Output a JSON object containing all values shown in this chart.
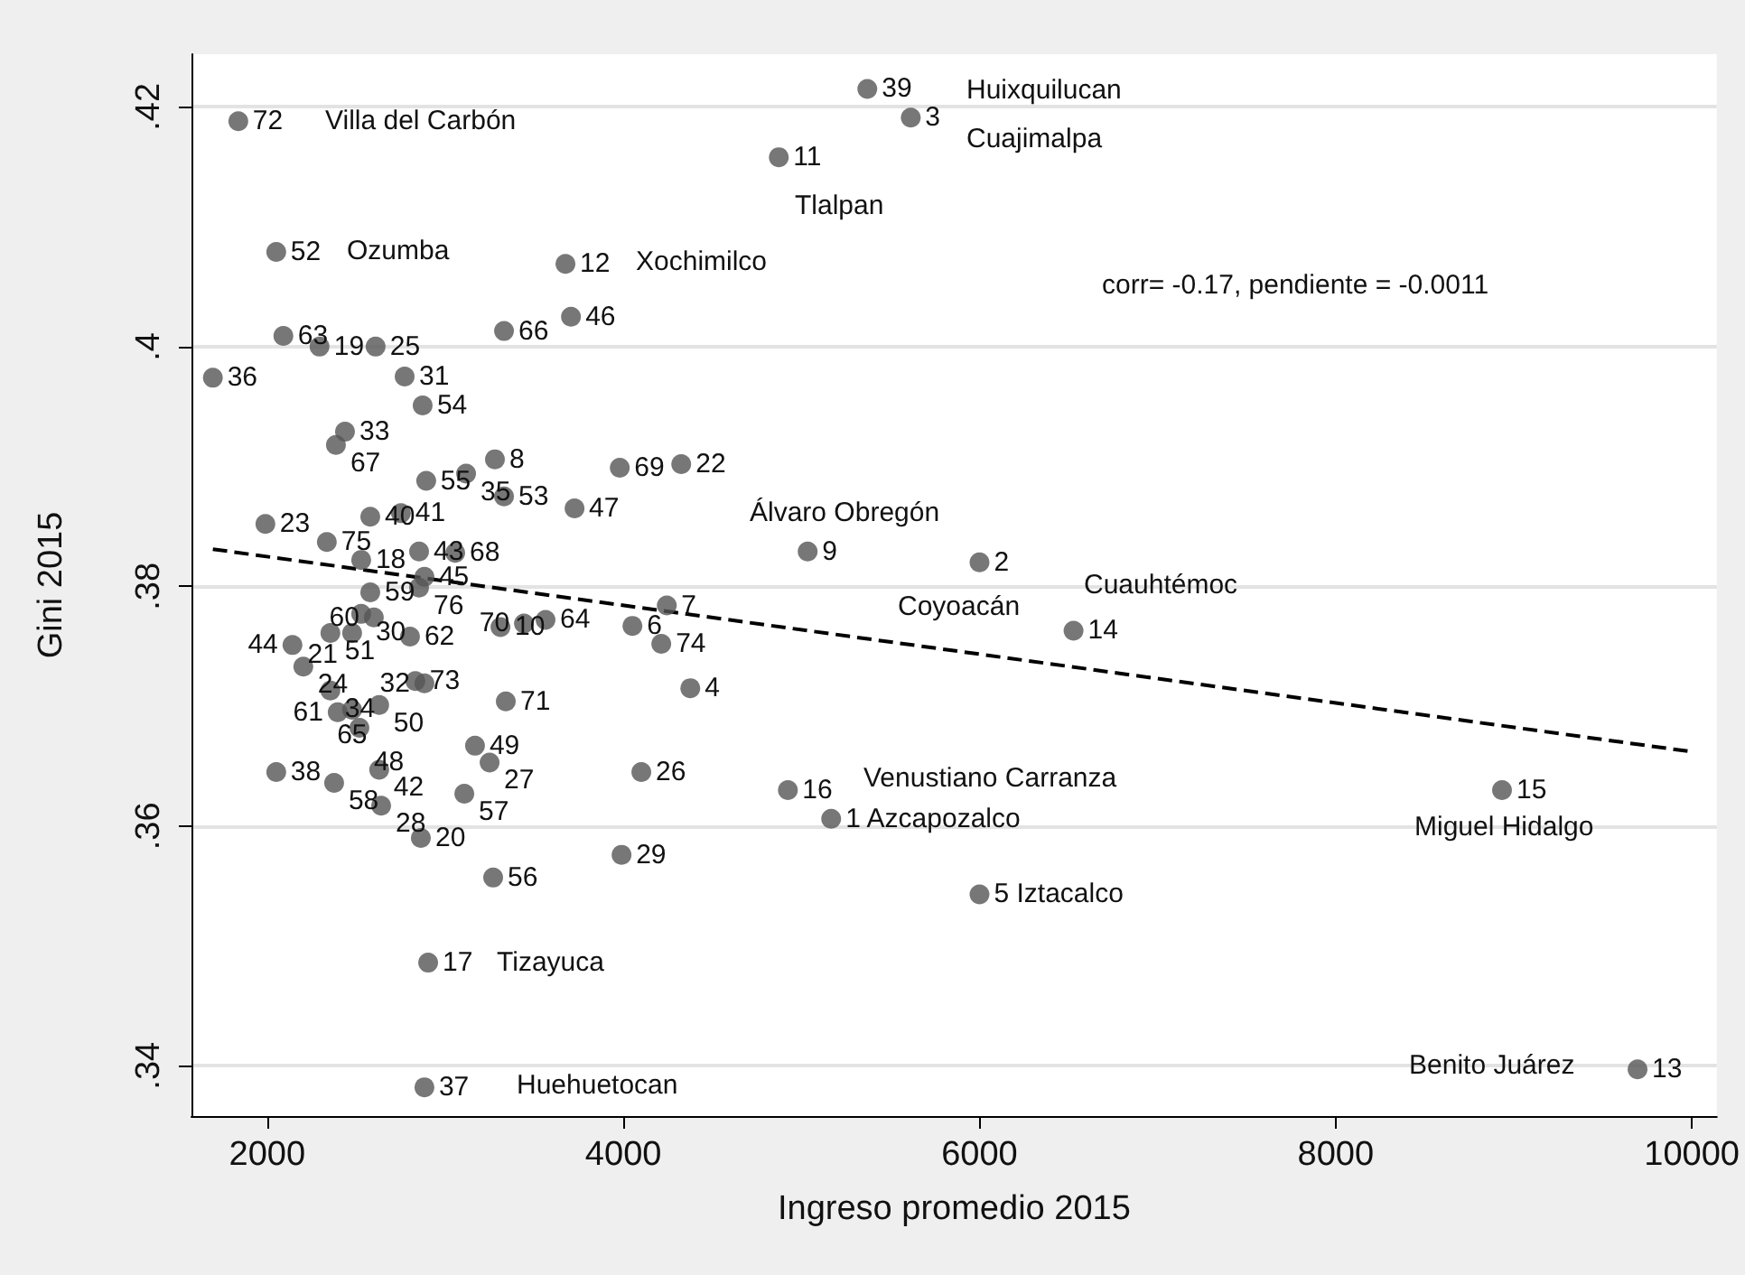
{
  "chart_data": {
    "type": "scatter",
    "xlabel": "Ingreso promedio 2015",
    "ylabel": "Gini 2015",
    "xlim": [
      1575,
      10140
    ],
    "ylim": [
      0.3358,
      0.4244
    ],
    "xticks": [
      2000,
      4000,
      6000,
      8000,
      10000
    ],
    "yticks": [
      {
        "value": 0.34,
        "label": ".34"
      },
      {
        "value": 0.36,
        "label": ".36"
      },
      {
        "value": 0.38,
        "label": ".38"
      },
      {
        "value": 0.4,
        "label": ".4"
      },
      {
        "value": 0.42,
        "label": ".42"
      }
    ],
    "grid": "y",
    "marker": "circle",
    "series": [
      {
        "color": "#555555",
        "x": [
          5370,
          5614,
          1838,
          4873,
          2051,
          3675,
          3706,
          3330,
          2091,
          2294,
          2609,
          1695,
          2772,
          2873,
          2437,
          2386,
          3279,
          3980,
          4325,
          2893,
          3117,
          3330,
          3726,
          1990,
          2579,
          2751,
          5035,
          6000,
          2335,
          2853,
          3056,
          2528,
          2883,
          2853,
          2579,
          2528,
          2599,
          2355,
          2477,
          2802,
          3310,
          3442,
          3563,
          4051,
          4244,
          4213,
          2142,
          2203,
          4376,
          2355,
          2832,
          2883,
          3340,
          2396,
          2477,
          2629,
          2518,
          3167,
          3249,
          4101,
          2051,
          2376,
          2629,
          2640,
          3107,
          2863,
          3990,
          3269,
          2904,
          2883,
          4924,
          5167,
          6000,
          6528,
          8934,
          9695
        ],
        "values": [
          0.4215,
          0.4191,
          0.4188,
          0.4158,
          0.4079,
          0.4069,
          0.4025,
          0.4013,
          0.4009,
          0.4,
          0.4,
          0.3974,
          0.3975,
          0.3951,
          0.3929,
          0.3918,
          0.3906,
          0.3899,
          0.3902,
          0.3888,
          0.3894,
          0.3875,
          0.3865,
          0.3852,
          0.3858,
          0.3861,
          0.3829,
          0.382,
          0.3837,
          0.3829,
          0.3828,
          0.3822,
          0.3808,
          0.3799,
          0.3795,
          0.3777,
          0.3774,
          0.3761,
          0.3761,
          0.3758,
          0.3766,
          0.3769,
          0.3772,
          0.3767,
          0.3784,
          0.3752,
          0.3751,
          0.3733,
          0.3715,
          0.3713,
          0.3721,
          0.3719,
          0.3704,
          0.3695,
          0.3697,
          0.3701,
          0.3682,
          0.3667,
          0.3653,
          0.3645,
          0.3645,
          0.3636,
          0.3647,
          0.3617,
          0.3627,
          0.359,
          0.3576,
          0.3557,
          0.3486,
          0.3382,
          0.363,
          0.3606,
          0.3543,
          0.3763,
          0.363,
          0.3397
        ]
      },
      {
        "type": "line",
        "color": "#000000",
        "line_style": "dashed",
        "marker": "none",
        "x": [
          1695,
          10000
        ],
        "values": [
          0.3831,
          0.3662
        ]
      }
    ],
    "annotations": [
      "corr= -0.17, pendiente = -0.0011",
      "Huixquilucan",
      "Cuajimalpa",
      "Villa del Carbón",
      "Tlalpan",
      "Ozumba",
      "Xochimilco",
      "Álvaro Obregón",
      "Coyoacán",
      "Cuauhtémoc",
      "Venustiano Carranza",
      "Miguel Hidalgo",
      "Benito Juárez",
      "Tizayuca",
      "Huehuetocan",
      {
        "text": "39",
        "x": 5370,
        "y": 0.4215
      },
      {
        "text": "3",
        "x": 5614,
        "y": 0.4191
      },
      {
        "text": "72",
        "x": 1838,
        "y": 0.4188
      },
      {
        "text": "11",
        "x": 4873,
        "y": 0.4158
      },
      {
        "text": "52",
        "x": 2051,
        "y": 0.4079
      },
      {
        "text": "12",
        "x": 3675,
        "y": 0.4069
      },
      {
        "text": "46",
        "x": 3706,
        "y": 0.4025
      },
      {
        "text": "66",
        "x": 3330,
        "y": 0.4013
      },
      {
        "text": "63",
        "x": 2091,
        "y": 0.4009
      },
      {
        "text": "19",
        "x": 2294,
        "y": 0.4
      },
      {
        "text": "25",
        "x": 2609,
        "y": 0.4
      },
      {
        "text": "36",
        "x": 1695,
        "y": 0.3974
      },
      {
        "text": "31",
        "x": 2772,
        "y": 0.3975
      },
      {
        "text": "54",
        "x": 2873,
        "y": 0.3951
      },
      {
        "text": "33",
        "x": 2437,
        "y": 0.3929
      },
      {
        "text": "67",
        "x": 2386,
        "y": 0.3918
      },
      {
        "text": "8",
        "x": 3279,
        "y": 0.3906
      },
      {
        "text": "69",
        "x": 3980,
        "y": 0.3899
      },
      {
        "text": "22",
        "x": 4325,
        "y": 0.3902
      },
      {
        "text": "55",
        "x": 2893,
        "y": 0.3888
      },
      {
        "text": "35",
        "x": 3117,
        "y": 0.3894
      },
      {
        "text": "53",
        "x": 3330,
        "y": 0.3875
      },
      {
        "text": "47",
        "x": 3726,
        "y": 0.3865
      },
      {
        "text": "23",
        "x": 1990,
        "y": 0.3852
      },
      {
        "text": "40",
        "x": 2579,
        "y": 0.3858
      },
      {
        "text": "41",
        "x": 2751,
        "y": 0.3861
      },
      {
        "text": "9",
        "x": 5035,
        "y": 0.3829
      },
      {
        "text": "2",
        "x": 6000,
        "y": 0.382
      },
      {
        "text": "75",
        "x": 2335,
        "y": 0.3837
      },
      {
        "text": "43",
        "x": 2853,
        "y": 0.3829
      },
      {
        "text": "68",
        "x": 3056,
        "y": 0.3828
      },
      {
        "text": "18",
        "x": 2528,
        "y": 0.3822
      },
      {
        "text": "45",
        "x": 2883,
        "y": 0.3808
      },
      {
        "text": "76",
        "x": 2853,
        "y": 0.3799
      },
      {
        "text": "59",
        "x": 2579,
        "y": 0.3795
      },
      {
        "text": "30",
        "x": 2528,
        "y": 0.3777
      },
      {
        "text": "60",
        "x": 2599,
        "y": 0.3774
      },
      {
        "text": "51",
        "x": 2355,
        "y": 0.3761
      },
      {
        "text": "21",
        "x": 2477,
        "y": 0.3761
      },
      {
        "text": "62",
        "x": 2802,
        "y": 0.3758
      },
      {
        "text": "10",
        "x": 3310,
        "y": 0.3766
      },
      {
        "text": "70",
        "x": 3442,
        "y": 0.3769
      },
      {
        "text": "64",
        "x": 3563,
        "y": 0.3772
      },
      {
        "text": "6",
        "x": 4051,
        "y": 0.3767
      },
      {
        "text": "7",
        "x": 4244,
        "y": 0.3784
      },
      {
        "text": "74",
        "x": 4213,
        "y": 0.3752
      },
      {
        "text": "44",
        "x": 2142,
        "y": 0.3751
      },
      {
        "text": "24",
        "x": 2203,
        "y": 0.3733
      },
      {
        "text": "4",
        "x": 4376,
        "y": 0.3715
      },
      {
        "text": "34",
        "x": 2355,
        "y": 0.3713
      },
      {
        "text": "73",
        "x": 2832,
        "y": 0.3721
      },
      {
        "text": "32",
        "x": 2883,
        "y": 0.3719
      },
      {
        "text": "71",
        "x": 3340,
        "y": 0.3704
      },
      {
        "text": "61",
        "x": 2396,
        "y": 0.3695
      },
      {
        "text": "65",
        "x": 2477,
        "y": 0.3697
      },
      {
        "text": "50",
        "x": 2629,
        "y": 0.3701
      },
      {
        "text": "48",
        "x": 2518,
        "y": 0.3682
      },
      {
        "text": "49",
        "x": 3167,
        "y": 0.3667
      },
      {
        "text": "27",
        "x": 3249,
        "y": 0.3653
      },
      {
        "text": "26",
        "x": 4101,
        "y": 0.3645
      },
      {
        "text": "38",
        "x": 2051,
        "y": 0.3645
      },
      {
        "text": "58",
        "x": 2376,
        "y": 0.3636
      },
      {
        "text": "42",
        "x": 2629,
        "y": 0.3647
      },
      {
        "text": "28",
        "x": 2640,
        "y": 0.3617
      },
      {
        "text": "57",
        "x": 3107,
        "y": 0.3627
      },
      {
        "text": "20",
        "x": 2863,
        "y": 0.359
      },
      {
        "text": "29",
        "x": 3990,
        "y": 0.3576
      },
      {
        "text": "56",
        "x": 3269,
        "y": 0.3557
      },
      {
        "text": "17",
        "x": 2904,
        "y": 0.3486
      },
      {
        "text": "37",
        "x": 2883,
        "y": 0.3382
      },
      {
        "text": "16",
        "x": 4924,
        "y": 0.363
      },
      {
        "text": "1 Azcapozalco",
        "x": 5167,
        "y": 0.3606
      },
      {
        "text": "5 Iztacalco",
        "x": 6000,
        "y": 0.3543
      },
      {
        "text": "14",
        "x": 6528,
        "y": 0.3763
      },
      {
        "text": "15",
        "x": 8934,
        "y": 0.363
      },
      {
        "text": "13",
        "x": 9695,
        "y": 0.3397
      }
    ]
  }
}
